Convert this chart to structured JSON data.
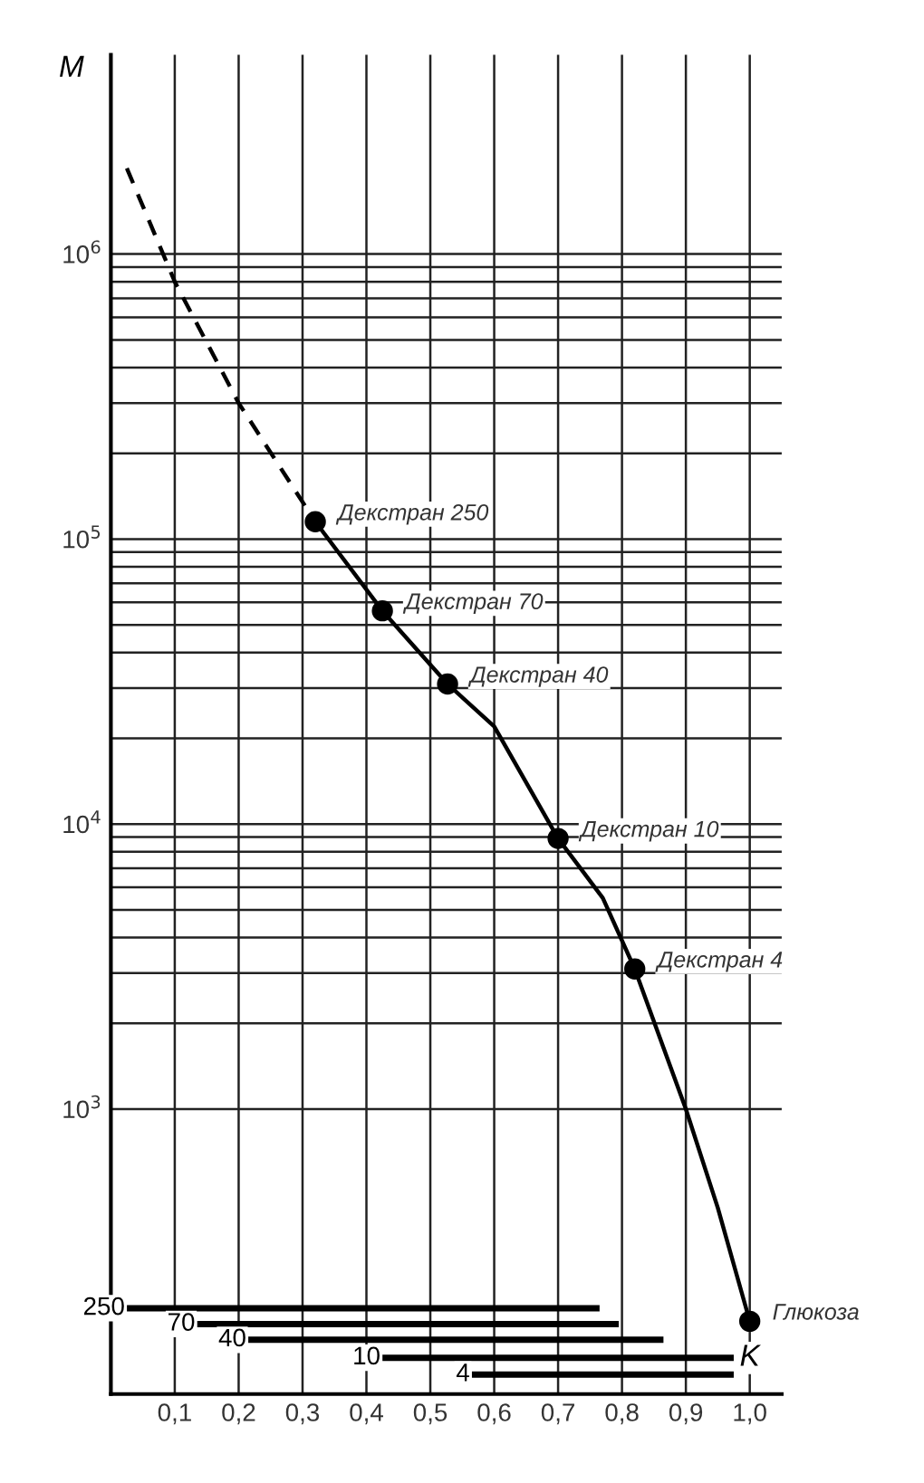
{
  "chart_data": {
    "type": "line",
    "xlabel": "K",
    "ylabel": "M",
    "log": "y",
    "grid": true,
    "xlim": [
      0,
      1.05
    ],
    "ylim": [
      100,
      5000000
    ],
    "xticks": [
      {
        "value": 0.1,
        "label": "0,1"
      },
      {
        "value": 0.2,
        "label": "0,2"
      },
      {
        "value": 0.3,
        "label": "0,3"
      },
      {
        "value": 0.4,
        "label": "0,4"
      },
      {
        "value": 0.5,
        "label": "0,5"
      },
      {
        "value": 0.6,
        "label": "0,6"
      },
      {
        "value": 0.7,
        "label": "0,7"
      },
      {
        "value": 0.8,
        "label": "0,8"
      },
      {
        "value": 0.9,
        "label": "0,9"
      },
      {
        "value": 1.0,
        "label": "1,0"
      }
    ],
    "yticks": [
      {
        "value": 1000,
        "label": "10$^{3}$"
      },
      {
        "value": 2000,
        "label": null
      },
      {
        "value": 3000,
        "label": null
      },
      {
        "value": 4000,
        "label": null
      },
      {
        "value": 5000,
        "label": null
      },
      {
        "value": 6000,
        "label": null
      },
      {
        "value": 7000,
        "label": null
      },
      {
        "value": 8000,
        "label": null
      },
      {
        "value": 9000,
        "label": null
      },
      {
        "value": 10000,
        "label": "10$^{4}$"
      },
      {
        "value": 20000,
        "label": null
      },
      {
        "value": 30000,
        "label": null
      },
      {
        "value": 40000,
        "label": null
      },
      {
        "value": 50000,
        "label": null
      },
      {
        "value": 60000,
        "label": null
      },
      {
        "value": 70000,
        "label": null
      },
      {
        "value": 80000,
        "label": null
      },
      {
        "value": 90000,
        "label": null
      },
      {
        "value": 100000,
        "label": "10$^{5}$"
      },
      {
        "value": 200000,
        "label": null
      },
      {
        "value": 300000,
        "label": null
      },
      {
        "value": 400000,
        "label": null
      },
      {
        "value": 500000,
        "label": null
      },
      {
        "value": 600000,
        "label": null
      },
      {
        "value": 700000,
        "label": null
      },
      {
        "value": 800000,
        "label": null
      },
      {
        "value": 900000,
        "label": null
      },
      {
        "value": 1000000,
        "label": "10$^{6}$"
      }
    ],
    "series": [
      {
        "line_style": "dashed",
        "color": "#000000",
        "x": [
          0.025,
          0.1,
          0.2,
          0.32
        ],
        "values": [
          2000000,
          800000,
          300000,
          115000
        ]
      },
      {
        "line_style": "solid",
        "color": "#000000",
        "x": [
          0.32,
          0.425,
          0.527,
          0.6,
          0.7,
          0.77,
          0.82,
          0.9,
          0.95,
          1.0
        ],
        "values": [
          115000,
          56000,
          31000,
          22000,
          8900,
          5500,
          3100,
          1000,
          450,
          180
        ]
      },
      {
        "type": "scatter",
        "marker": "circle",
        "color": "#000000",
        "x": [
          0.32,
          0.425,
          0.527,
          0.7,
          0.82,
          1.0
        ],
        "values": [
          115000,
          56000,
          31000,
          8900,
          3100,
          180
        ]
      },
      {
        "name": "250",
        "line_style": "solid",
        "color": "#000000",
        "x": [
          0.03,
          0.76
        ],
        "values": [
          200,
          200
        ]
      },
      {
        "name": "70",
        "line_style": "solid",
        "color": "#000000",
        "x": [
          0.14,
          0.79
        ],
        "values": [
          176,
          176
        ]
      },
      {
        "name": "40",
        "line_style": "solid",
        "color": "#000000",
        "x": [
          0.22,
          0.86
        ],
        "values": [
          155,
          155
        ]
      },
      {
        "name": "10",
        "line_style": "solid",
        "color": "#000000",
        "x": [
          0.43,
          0.97
        ],
        "values": [
          134,
          134
        ]
      },
      {
        "name": "4",
        "line_style": "solid",
        "color": "#000000",
        "x": [
          0.57,
          0.97
        ],
        "values": [
          117,
          117
        ]
      }
    ],
    "annotations": [
      {
        "text": "Декстран 250",
        "x": 0.32,
        "y": 115000
      },
      {
        "text": "Декстран 70",
        "x": 0.425,
        "y": 56000
      },
      {
        "text": "Декстран 40",
        "x": 0.527,
        "y": 31000
      },
      {
        "text": "Декстран 10",
        "x": 0.7,
        "y": 8900
      },
      {
        "text": "Декстран 4",
        "x": 0.82,
        "y": 3100
      },
      {
        "text": "Глюкоза",
        "x": 1.0,
        "y": 180
      }
    ]
  }
}
